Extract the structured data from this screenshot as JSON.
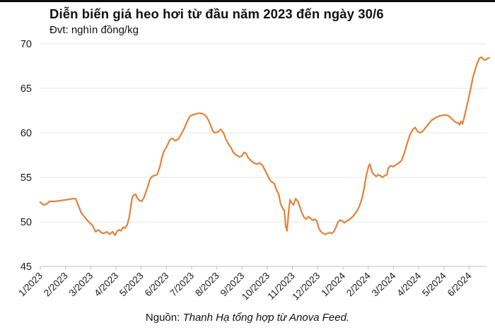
{
  "page": {
    "title": "Diễn biến giá heo hơi từ đầu năm 2023 đến ngày 30/6",
    "unit_label": "Đvt: nghìn đồng/kg",
    "source_prefix": "Nguồn: ",
    "source_text": "Thanh Hạ tổng hợp từ Anova Feed."
  },
  "chart_data": {
    "type": "line",
    "title": "Diễn biến giá heo hơi từ đầu năm 2023 đến ngày 30/6",
    "unit": "nghìn đồng/kg",
    "xlabel": "",
    "ylabel": "",
    "ylim": [
      45,
      70
    ],
    "yticks": [
      45,
      50,
      55,
      60,
      65,
      70
    ],
    "x_tick_labels": [
      "1/2023",
      "2/2023",
      "3/2023",
      "4/2023",
      "5/2023",
      "6/2023",
      "7/2023",
      "8/2023",
      "9/2023",
      "10/2023",
      "11/2023",
      "12/2023",
      "1/2024",
      "2/2024",
      "3/2024",
      "4/2024",
      "5/2024",
      "6/2024"
    ],
    "grid": true,
    "legend_position": "none",
    "line_color": "#e2823b",
    "grid_color": "#e7e7e7",
    "axis_color": "#c2c2c2",
    "label_color": "#1a1a1a",
    "series": [
      {
        "name": "Giá heo hơi (nghìn đồng/kg)",
        "x_unit": "months since 1/2023 tick",
        "points": [
          [
            0,
            52.2
          ],
          [
            0.14,
            51.9
          ],
          [
            0.25,
            52.0
          ],
          [
            0.36,
            52.3
          ],
          [
            0.59,
            52.3
          ],
          [
            0.81,
            52.4
          ],
          [
            1.07,
            52.5
          ],
          [
            1.29,
            52.6
          ],
          [
            1.4,
            52.6
          ],
          [
            1.51,
            51.8
          ],
          [
            1.63,
            51.0
          ],
          [
            1.74,
            50.6
          ],
          [
            1.85,
            50.2
          ],
          [
            1.96,
            49.9
          ],
          [
            2.07,
            49.6
          ],
          [
            2.19,
            48.9
          ],
          [
            2.3,
            49.1
          ],
          [
            2.41,
            48.8
          ],
          [
            2.52,
            48.7
          ],
          [
            2.64,
            48.9
          ],
          [
            2.75,
            48.6
          ],
          [
            2.86,
            48.9
          ],
          [
            2.97,
            48.5
          ],
          [
            3.03,
            48.9
          ],
          [
            3.11,
            49.1
          ],
          [
            3.2,
            49.0
          ],
          [
            3.28,
            49.4
          ],
          [
            3.36,
            49.3
          ],
          [
            3.45,
            49.7
          ],
          [
            3.53,
            50.6
          ],
          [
            3.59,
            51.8
          ],
          [
            3.64,
            52.7
          ],
          [
            3.7,
            53.0
          ],
          [
            3.78,
            53.1
          ],
          [
            3.84,
            52.7
          ],
          [
            3.93,
            52.4
          ],
          [
            4.01,
            52.3
          ],
          [
            4.09,
            52.6
          ],
          [
            4.18,
            53.3
          ],
          [
            4.26,
            54.0
          ],
          [
            4.35,
            54.8
          ],
          [
            4.43,
            55.1
          ],
          [
            4.51,
            55.2
          ],
          [
            4.63,
            55.3
          ],
          [
            4.74,
            56.2
          ],
          [
            4.82,
            57.2
          ],
          [
            4.91,
            58.0
          ],
          [
            5.02,
            58.5
          ],
          [
            5.13,
            59.2
          ],
          [
            5.24,
            59.4
          ],
          [
            5.35,
            59.1
          ],
          [
            5.47,
            59.3
          ],
          [
            5.58,
            59.8
          ],
          [
            5.69,
            60.4
          ],
          [
            5.78,
            61.0
          ],
          [
            5.86,
            61.5
          ],
          [
            5.94,
            61.9
          ],
          [
            6.03,
            62.0
          ],
          [
            6.14,
            62.1
          ],
          [
            6.25,
            62.2
          ],
          [
            6.36,
            62.2
          ],
          [
            6.48,
            62.1
          ],
          [
            6.59,
            61.8
          ],
          [
            6.67,
            61.4
          ],
          [
            6.76,
            60.8
          ],
          [
            6.84,
            60.2
          ],
          [
            6.92,
            60.0
          ],
          [
            7.04,
            60.1
          ],
          [
            7.15,
            60.4
          ],
          [
            7.26,
            60.0
          ],
          [
            7.37,
            59.2
          ],
          [
            7.49,
            58.6
          ],
          [
            7.57,
            58.3
          ],
          [
            7.65,
            57.8
          ],
          [
            7.77,
            57.5
          ],
          [
            7.88,
            57.3
          ],
          [
            7.99,
            57.4
          ],
          [
            8.07,
            57.8
          ],
          [
            8.16,
            57.7
          ],
          [
            8.24,
            57.2
          ],
          [
            8.35,
            56.9
          ],
          [
            8.47,
            56.6
          ],
          [
            8.58,
            56.5
          ],
          [
            8.69,
            56.6
          ],
          [
            8.8,
            56.4
          ],
          [
            8.89,
            55.9
          ],
          [
            9.0,
            55.3
          ],
          [
            9.08,
            54.8
          ],
          [
            9.17,
            54.5
          ],
          [
            9.28,
            54.3
          ],
          [
            9.36,
            53.6
          ],
          [
            9.45,
            53.1
          ],
          [
            9.53,
            52.0
          ],
          [
            9.62,
            51.5
          ],
          [
            9.67,
            51.3
          ],
          [
            9.73,
            49.5
          ],
          [
            9.78,
            49.0
          ],
          [
            9.84,
            51.0
          ],
          [
            9.9,
            52.5
          ],
          [
            9.95,
            52.2
          ],
          [
            10.04,
            51.9
          ],
          [
            10.12,
            52.6
          ],
          [
            10.21,
            52.3
          ],
          [
            10.29,
            51.7
          ],
          [
            10.37,
            51.0
          ],
          [
            10.46,
            50.5
          ],
          [
            10.54,
            50.3
          ],
          [
            10.63,
            50.6
          ],
          [
            10.71,
            50.4
          ],
          [
            10.79,
            50.2
          ],
          [
            10.88,
            50.3
          ],
          [
            10.96,
            50.1
          ],
          [
            11.05,
            49.2
          ],
          [
            11.13,
            48.9
          ],
          [
            11.21,
            48.7
          ],
          [
            11.3,
            48.6
          ],
          [
            11.38,
            48.7
          ],
          [
            11.47,
            48.8
          ],
          [
            11.55,
            48.7
          ],
          [
            11.63,
            48.9
          ],
          [
            11.72,
            49.4
          ],
          [
            11.8,
            50.0
          ],
          [
            11.89,
            50.2
          ],
          [
            11.97,
            50.1
          ],
          [
            12.06,
            49.9
          ],
          [
            12.14,
            50.1
          ],
          [
            12.22,
            50.2
          ],
          [
            12.31,
            50.4
          ],
          [
            12.42,
            50.7
          ],
          [
            12.53,
            51.1
          ],
          [
            12.64,
            51.7
          ],
          [
            12.76,
            52.7
          ],
          [
            12.84,
            53.8
          ],
          [
            12.92,
            55.2
          ],
          [
            13.01,
            56.2
          ],
          [
            13.06,
            56.5
          ],
          [
            13.15,
            55.6
          ],
          [
            13.23,
            55.3
          ],
          [
            13.32,
            55.1
          ],
          [
            13.4,
            55.3
          ],
          [
            13.48,
            55.2
          ],
          [
            13.57,
            55.0
          ],
          [
            13.65,
            55.2
          ],
          [
            13.74,
            55.3
          ],
          [
            13.79,
            56.0
          ],
          [
            13.88,
            56.3
          ],
          [
            13.99,
            56.2
          ],
          [
            14.1,
            56.4
          ],
          [
            14.21,
            56.6
          ],
          [
            14.32,
            56.9
          ],
          [
            14.44,
            57.8
          ],
          [
            14.55,
            58.9
          ],
          [
            14.66,
            59.8
          ],
          [
            14.77,
            60.4
          ],
          [
            14.86,
            60.6
          ],
          [
            14.94,
            60.2
          ],
          [
            15.05,
            60.0
          ],
          [
            15.17,
            60.2
          ],
          [
            15.28,
            60.6
          ],
          [
            15.39,
            61.0
          ],
          [
            15.5,
            61.4
          ],
          [
            15.62,
            61.6
          ],
          [
            15.73,
            61.8
          ],
          [
            15.84,
            61.9
          ],
          [
            15.98,
            62.0
          ],
          [
            16.12,
            62.0
          ],
          [
            16.23,
            61.8
          ],
          [
            16.34,
            61.5
          ],
          [
            16.46,
            61.2
          ],
          [
            16.57,
            61.1
          ],
          [
            16.62,
            60.9
          ],
          [
            16.68,
            61.3
          ],
          [
            16.74,
            61.0
          ],
          [
            16.82,
            61.9
          ],
          [
            16.9,
            62.9
          ],
          [
            16.99,
            64.0
          ],
          [
            17.07,
            65.1
          ],
          [
            17.15,
            66.2
          ],
          [
            17.24,
            67.1
          ],
          [
            17.32,
            67.8
          ],
          [
            17.41,
            68.4
          ],
          [
            17.49,
            68.5
          ],
          [
            17.58,
            68.2
          ],
          [
            17.66,
            68.2
          ],
          [
            17.75,
            68.4
          ],
          [
            17.8,
            68.4
          ]
        ]
      }
    ]
  }
}
